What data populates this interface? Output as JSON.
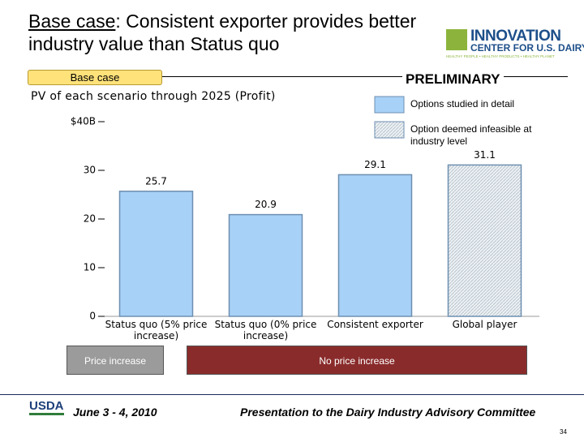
{
  "header": {
    "title_lead": "Base case",
    "title_rest": ": Consistent exporter provides better industry value than Status quo",
    "logo_main": "INNOVATION",
    "logo_sub": "CENTER FOR U.S. DAIRY",
    "logo_tagline": "HEALTHY PEOPLE • HEALTHY PRODUCTS • HEALTHY PLANET",
    "tag": "Base case",
    "status": "PRELIMINARY"
  },
  "chart_data": {
    "type": "bar",
    "subtitle": "PV of each scenario through 2025 (Profit)",
    "categories": [
      "Status quo (5% price increase)",
      "Status quo (0% price increase)",
      "Consistent exporter",
      "Global player"
    ],
    "values": [
      25.7,
      20.9,
      29.1,
      31.1
    ],
    "bar_styles": [
      0,
      0,
      0,
      1
    ],
    "legend": [
      {
        "label": "Options studied in detail",
        "color": "#a8d1f7"
      },
      {
        "label": "Option deemed infeasible at industry level",
        "pattern": "hatch"
      }
    ],
    "ylim": [
      0,
      40
    ],
    "yticks": [
      0,
      10,
      20,
      30,
      {
        "value": 40,
        "label": "$40B"
      }
    ],
    "grid": false,
    "groups": [
      {
        "label": "Price increase",
        "color": "#9b9b9b"
      },
      {
        "label": "No price increase",
        "color": "#8a2b2b"
      }
    ]
  },
  "footer": {
    "org": "USDA",
    "date": "June 3 - 4, 2010",
    "event": "Presentation to the Dairy Industry Advisory Committee",
    "page": "34"
  }
}
